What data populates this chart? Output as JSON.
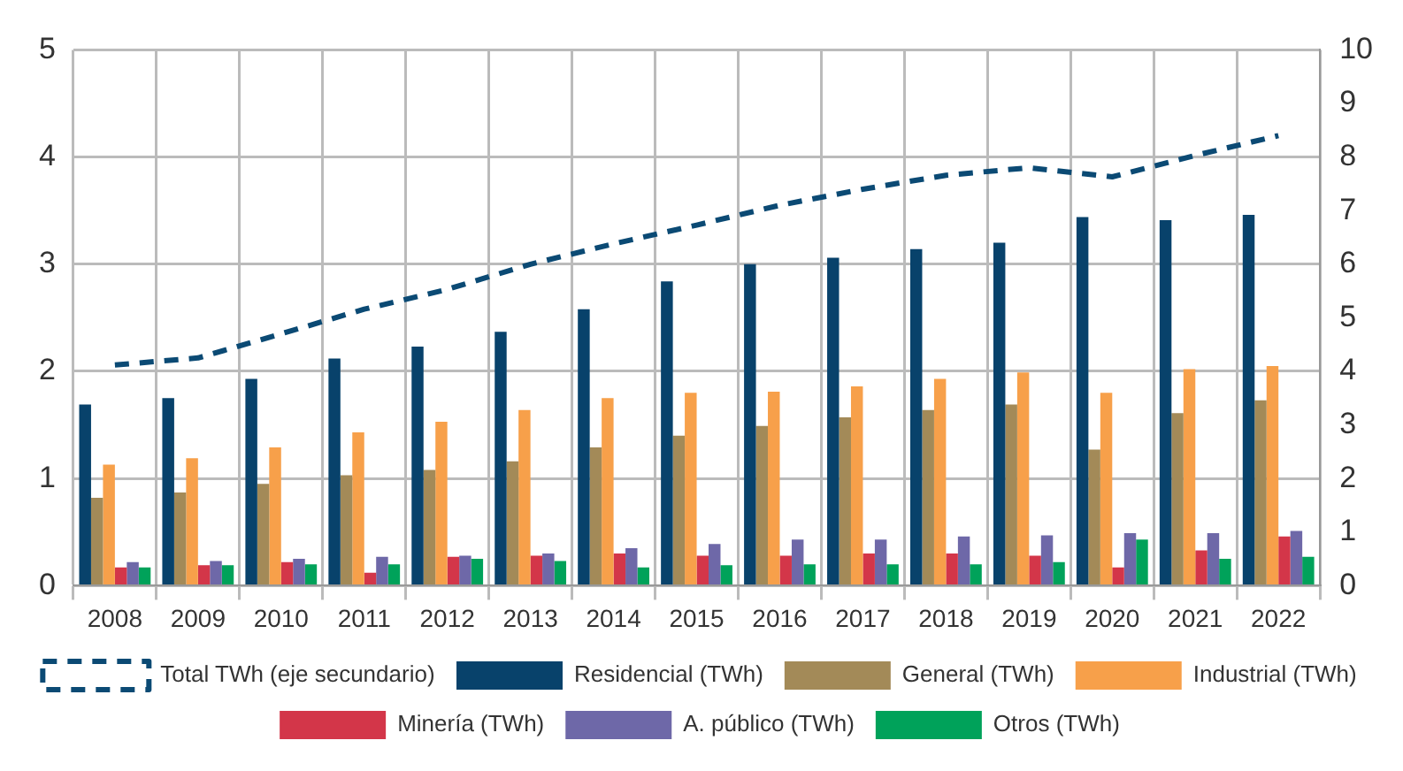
{
  "chart_data": {
    "type": "bar",
    "categories": [
      "2008",
      "2009",
      "2010",
      "2011",
      "2012",
      "2013",
      "2014",
      "2015",
      "2016",
      "2017",
      "2018",
      "2019",
      "2020",
      "2021",
      "2022"
    ],
    "series": [
      {
        "name": "Residencial (TWh)",
        "color": "#08426b",
        "values": [
          1.69,
          1.75,
          1.93,
          2.12,
          2.23,
          2.37,
          2.58,
          2.84,
          3.0,
          3.06,
          3.14,
          3.2,
          3.44,
          3.41,
          3.46
        ]
      },
      {
        "name": "General (TWh)",
        "color": "#a38a58",
        "values": [
          0.82,
          0.87,
          0.95,
          1.03,
          1.08,
          1.16,
          1.29,
          1.4,
          1.49,
          1.57,
          1.64,
          1.69,
          1.27,
          1.61,
          1.73
        ]
      },
      {
        "name": "Industrial (TWh)",
        "color": "#f7a04a",
        "values": [
          1.13,
          1.19,
          1.29,
          1.43,
          1.53,
          1.64,
          1.75,
          1.8,
          1.81,
          1.86,
          1.93,
          1.99,
          1.8,
          2.02,
          2.05
        ]
      },
      {
        "name": "Minería (TWh)",
        "color": "#d33649",
        "values": [
          0.17,
          0.19,
          0.22,
          0.12,
          0.27,
          0.28,
          0.3,
          0.28,
          0.28,
          0.3,
          0.3,
          0.28,
          0.17,
          0.33,
          0.46
        ]
      },
      {
        "name": "A. público (TWh)",
        "color": "#6e68a8",
        "values": [
          0.22,
          0.23,
          0.25,
          0.27,
          0.28,
          0.3,
          0.35,
          0.39,
          0.43,
          0.43,
          0.46,
          0.47,
          0.49,
          0.49,
          0.51
        ]
      },
      {
        "name": "Otros (TWh)",
        "color": "#00a25a",
        "values": [
          0.17,
          0.19,
          0.2,
          0.2,
          0.25,
          0.23,
          0.17,
          0.19,
          0.2,
          0.2,
          0.2,
          0.22,
          0.43,
          0.25,
          0.27
        ]
      },
      {
        "name": "Total TWh (eje secundario)",
        "type": "line",
        "axis": "y2",
        "color": "#0b4a74",
        "line_style": "dashed",
        "values": [
          4.12,
          4.25,
          4.7,
          5.16,
          5.53,
          6.0,
          6.38,
          6.73,
          7.1,
          7.4,
          7.66,
          7.8,
          7.63,
          8.03,
          8.4
        ]
      }
    ],
    "ylim": [
      0,
      5
    ],
    "yticks": [
      0,
      1,
      2,
      3,
      4,
      5
    ],
    "y2lim": [
      0,
      10
    ],
    "y2ticks": [
      0,
      1,
      2,
      3,
      4,
      5,
      6,
      7,
      8,
      9,
      10
    ],
    "grid": true,
    "legend": "bottom",
    "marker": "none"
  }
}
